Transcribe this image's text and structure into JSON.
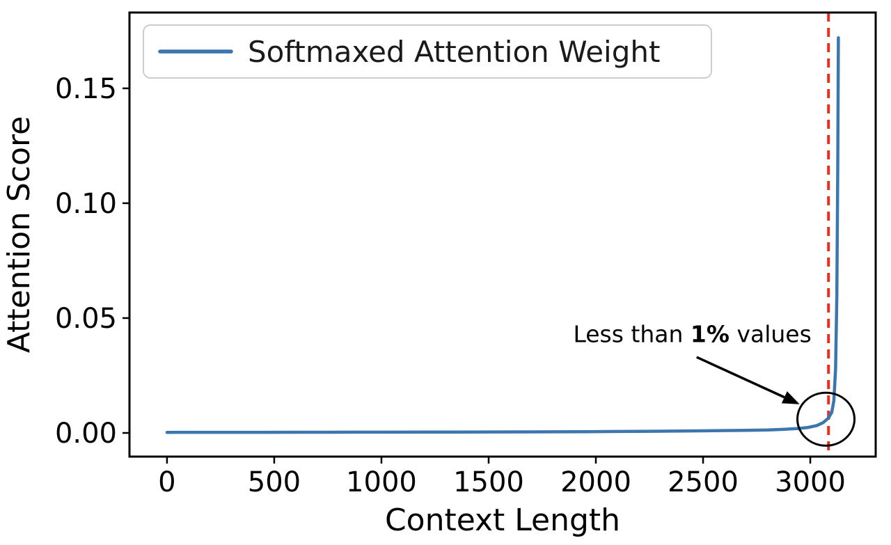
{
  "figure": {
    "background": "#ffffff"
  },
  "chart_data": {
    "type": "line",
    "title": "",
    "xlabel": "Context Length",
    "ylabel": "Attention Score",
    "xlim": [
      -175,
      3305
    ],
    "ylim": [
      -0.0103,
      0.183
    ],
    "xticks": [
      0,
      500,
      1000,
      1500,
      2000,
      2500,
      3000
    ],
    "yticks": [
      0,
      0.05,
      0.1,
      0.15
    ],
    "ytick_decimals": 2,
    "grid": false,
    "legend": {
      "position": "upper-left",
      "label": "Softmaxed Attention Weight"
    },
    "series": [
      {
        "name": "Softmaxed Attention Weight",
        "color": "#3c76af",
        "x": [
          0,
          150,
          300,
          450,
          600,
          750,
          900,
          1050,
          1200,
          1350,
          1500,
          1650,
          1800,
          1950,
          2100,
          2250,
          2400,
          2550,
          2700,
          2800,
          2880,
          2940,
          2990,
          3030,
          3060,
          3085,
          3100,
          3110,
          3118,
          3124,
          3128,
          3131
        ],
        "y": [
          0.00025,
          0.00026,
          0.00027,
          0.00028,
          0.00029,
          0.0003,
          0.00032,
          0.00034,
          0.00036,
          0.00039,
          0.00042,
          0.00046,
          0.0005,
          0.00056,
          0.00063,
          0.00072,
          0.00083,
          0.00097,
          0.00115,
          0.0013,
          0.0016,
          0.0019,
          0.0024,
          0.0032,
          0.0045,
          0.0065,
          0.009,
          0.014,
          0.028,
          0.06,
          0.115,
          0.172
        ]
      }
    ],
    "vline": {
      "x": 3085,
      "color": "#e5301f",
      "style": "dashed"
    },
    "annotation": {
      "parts": [
        {
          "text": "Less than ",
          "bold": false
        },
        {
          "text": "1%",
          "bold": true
        },
        {
          "text": " values",
          "bold": false
        }
      ],
      "text_x": 2450,
      "text_y": 0.0395,
      "arrow_from": [
        2470,
        0.033
      ],
      "arrow_to": [
        2950,
        0.0125
      ],
      "circle_x": 3073,
      "circle_y": 0.006
    }
  }
}
